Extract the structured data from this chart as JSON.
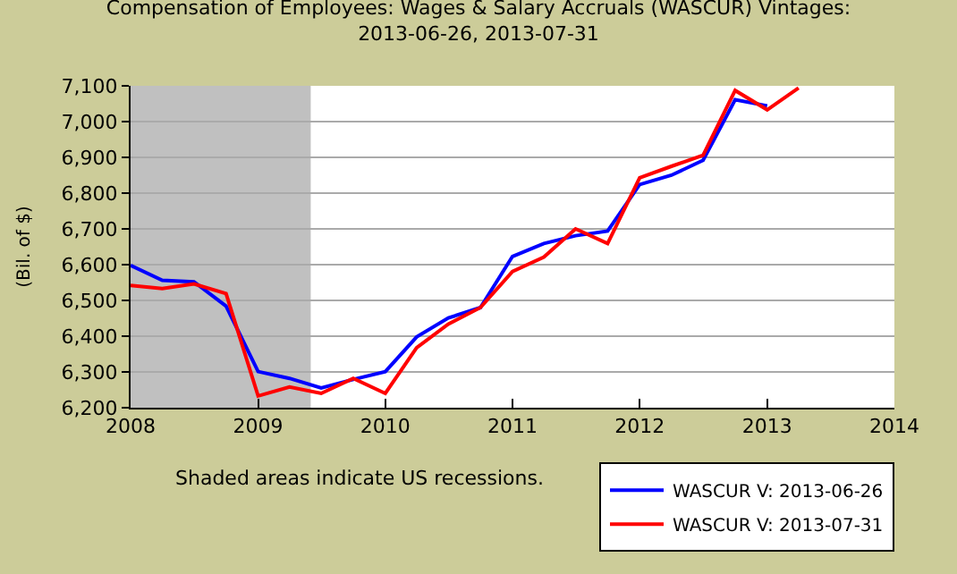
{
  "chart_data": {
    "type": "line",
    "title": "Compensation of Employees: Wages & Salary Accruals (WASCUR) Vintages:\n2013-06-26, 2013-07-31",
    "ylabel": "(Bil. of $)",
    "x": [
      "2008-01",
      "2008-04",
      "2008-07",
      "2008-10",
      "2009-01",
      "2009-04",
      "2009-07",
      "2009-10",
      "2010-01",
      "2010-04",
      "2010-07",
      "2010-10",
      "2011-01",
      "2011-04",
      "2011-07",
      "2011-10",
      "2012-01",
      "2012-04",
      "2012-07",
      "2012-10",
      "2013-01",
      "2013-04"
    ],
    "series": [
      {
        "name": "WASCUR V: 2013-06-26",
        "color": "#0000ff",
        "values": [
          6598,
          6556,
          6552,
          6484,
          6301,
          6282,
          6255,
          6279,
          6301,
          6398,
          6451,
          6480,
          6623,
          6659,
          6681,
          6694,
          6824,
          6850,
          6892,
          7061,
          7044,
          null
        ]
      },
      {
        "name": "WASCUR V: 2013-07-31",
        "color": "#ff0000",
        "values": [
          6542,
          6533,
          6546,
          6519,
          6233,
          6258,
          6240,
          6282,
          6240,
          6368,
          6434,
          6480,
          6581,
          6621,
          6700,
          6659,
          6843,
          6875,
          6906,
          7087,
          7033,
          7094
        ]
      }
    ],
    "xlim": [
      "2008-01-01",
      "2014-01-01"
    ],
    "xticks": [
      {
        "value": "2008-01-01",
        "label": "2008"
      },
      {
        "value": "2009-01-01",
        "label": "2009"
      },
      {
        "value": "2010-01-01",
        "label": "2010"
      },
      {
        "value": "2011-01-01",
        "label": "2011"
      },
      {
        "value": "2012-01-01",
        "label": "2012"
      },
      {
        "value": "2013-01-01",
        "label": "2013"
      },
      {
        "value": "2014-01-01",
        "label": "2014"
      }
    ],
    "ylim": [
      6200,
      7100
    ],
    "yticks": [
      {
        "value": 6200,
        "label": "6,200"
      },
      {
        "value": 6300,
        "label": "6,300"
      },
      {
        "value": 6400,
        "label": "6,400"
      },
      {
        "value": 6500,
        "label": "6,500"
      },
      {
        "value": 6600,
        "label": "6,600"
      },
      {
        "value": 6700,
        "label": "6,700"
      },
      {
        "value": 6800,
        "label": "6,800"
      },
      {
        "value": 6900,
        "label": "6,900"
      },
      {
        "value": 7000,
        "label": "7,000"
      },
      {
        "value": 7100,
        "label": "7,100"
      }
    ],
    "bands": [
      {
        "axis": "x",
        "from": "2008-01-01",
        "to": "2009-06-01",
        "color": "#c0c0c0"
      }
    ],
    "annotations": [
      "Shaded areas indicate US recessions."
    ],
    "grid": "y",
    "legend": "bottom right",
    "marker": "none",
    "line_style": "solid"
  }
}
